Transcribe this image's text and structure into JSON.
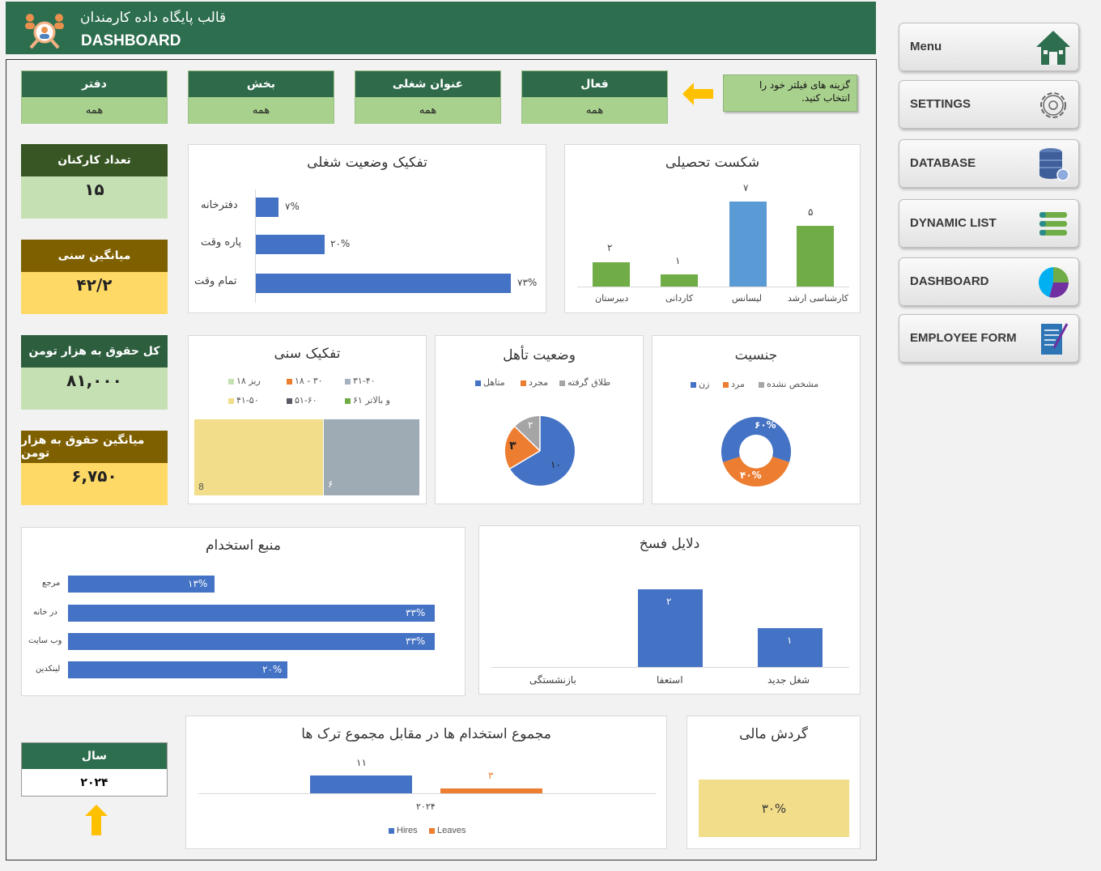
{
  "header": {
    "title_fa": "قالب پایگاه داده کارمندان",
    "title_en": "DASHBOARD",
    "logo_icon": "people-search-icon"
  },
  "filters": [
    {
      "label": "فعال",
      "value": "همه"
    },
    {
      "label": "عنوان شغلی",
      "value": "همه"
    },
    {
      "label": "بخش",
      "value": "همه"
    },
    {
      "label": "دفتر",
      "value": "همه"
    }
  ],
  "hint": {
    "text": "گزینه های فیلتر خود را انتخاب کنید.",
    "arrow_icon": "arrow-left-icon"
  },
  "kpis": {
    "employees": {
      "label": "تعداد کارکنان",
      "value": "۱۵"
    },
    "avg_age": {
      "label": "میانگین سنی",
      "value": "۴۲/۲"
    },
    "total_salary": {
      "label": "کل حقوق به هزار تومن",
      "value": "۸۱,۰۰۰"
    },
    "avg_salary": {
      "label": "میانگین حقوق به هزار تومن",
      "value": "۶,۷۵۰"
    }
  },
  "year": {
    "label": "سال",
    "value": "۲۰۲۴",
    "arrow_icon": "arrow-up-icon"
  },
  "sidebar": {
    "items": [
      {
        "label": "Menu",
        "icon": "home-icon"
      },
      {
        "label": "SETTINGS",
        "icon": "gear-icon"
      },
      {
        "label": "DATABASE",
        "icon": "database-icon"
      },
      {
        "label": "DYNAMIC LIST",
        "icon": "list-icon"
      },
      {
        "label": "DASHBOARD",
        "icon": "pie-chart-icon"
      },
      {
        "label": "EMPLOYEE FORM",
        "icon": "form-icon"
      }
    ]
  },
  "charts": {
    "education": {
      "title": "شکست تحصیلی",
      "categories": [
        "کارشناسی ارشد",
        "لیسانس",
        "کاردانی",
        "دبیرستان"
      ],
      "values": [
        "۵",
        "۷",
        "۱",
        "۲"
      ]
    },
    "job_status": {
      "title": "تفکیک وضعیت شغلی",
      "categories": [
        "دفترخانه",
        "پاره وقت",
        "تمام وقت"
      ],
      "values": [
        "۷%",
        "۲۰%",
        "۷۳%"
      ]
    },
    "gender": {
      "title": "جنسیت",
      "legend": [
        "مشخص نشده",
        "مرد",
        "زن"
      ],
      "labels": [
        "۶۰%",
        "۴۰%"
      ]
    },
    "marital": {
      "title": "وضعیت تأهل",
      "legend": [
        "طلاق گرفته",
        "مجرد",
        "متاهل"
      ],
      "labels": [
        "۱۰",
        "۳",
        "۲"
      ]
    },
    "age": {
      "title": "تفکیک سنی",
      "legend_row1": [
        "۳۱-۴۰",
        "۱۸ - ۳۰",
        "ریز ۱۸"
      ],
      "legend_row2": [
        "۶۱ و بالاتر",
        "۵۱-۶۰",
        "۴۱-۵۰"
      ],
      "labels": [
        "8",
        "۶"
      ]
    },
    "termination": {
      "title": "دلایل فسخ",
      "categories": [
        "شغل جدید",
        "استعفا",
        "بازنشستگی"
      ],
      "labels": [
        "۱",
        "۲"
      ]
    },
    "source": {
      "title": "منبع استخدام",
      "categories": [
        "مرجع",
        "در خانه",
        "وب سایت",
        "لینکدین"
      ],
      "labels": [
        "۱۳%",
        "۳۳%",
        "۳۳%",
        "۲۰%"
      ]
    },
    "hires_leaves": {
      "title": "مجموع استخدام ها در مقابل مجموع ترک ها",
      "category": "۲۰۲۴",
      "labels": [
        "۱۱",
        "۳"
      ],
      "legend": [
        "Hires",
        "Leaves"
      ]
    },
    "turnover": {
      "title": "گردش مالی",
      "value": "۳۰%"
    }
  },
  "chart_data": [
    {
      "type": "bar",
      "title": "شکست تحصیلی",
      "categories": [
        "کارشناسی ارشد",
        "لیسانس",
        "کاردانی",
        "دبیرستان"
      ],
      "values": [
        5,
        7,
        1,
        2
      ]
    },
    {
      "type": "bar",
      "title": "تفکیک وضعیت شغلی",
      "categories": [
        "دفترخانه",
        "پاره وقت",
        "تمام وقت"
      ],
      "values": [
        7,
        20,
        73
      ]
    },
    {
      "type": "pie",
      "title": "جنسیت",
      "categories": [
        "زن",
        "مرد"
      ],
      "values": [
        60,
        40
      ]
    },
    {
      "type": "pie",
      "title": "وضعیت تأهل",
      "categories": [
        "متاهل",
        "مجرد",
        "طلاق گرفته"
      ],
      "values": [
        10,
        3,
        2
      ]
    },
    {
      "type": "heatmap",
      "title": "تفکیک سنی",
      "categories": [
        "۴۱-۵۰",
        "۳۱-۴۰"
      ],
      "values": [
        8,
        6
      ]
    },
    {
      "type": "bar",
      "title": "دلایل فسخ",
      "categories": [
        "شغل جدید",
        "استعفا",
        "بازنشستگی"
      ],
      "values": [
        1,
        2,
        0
      ]
    },
    {
      "type": "bar",
      "title": "منبع استخدام",
      "categories": [
        "مرجع",
        "در خانه",
        "وب سایت",
        "لینکدین"
      ],
      "values": [
        13,
        33,
        33,
        20
      ]
    },
    {
      "type": "bar",
      "title": "مجموع استخدام ها در مقابل مجموع ترک ها",
      "categories": [
        "۲۰۲۴"
      ],
      "series": [
        {
          "name": "Hires",
          "values": [
            11
          ]
        },
        {
          "name": "Leaves",
          "values": [
            3
          ]
        }
      ]
    },
    {
      "type": "table",
      "title": "گردش مالی",
      "values": [
        30
      ]
    }
  ],
  "colors": {
    "dark_green": "#2d6e4f",
    "light_green": "#a9d18e",
    "blue": "#4472c4",
    "orange": "#ed7d31",
    "gray": "#a5a5a5",
    "yellow": "#ffd966",
    "chart_green": "#70ad47",
    "light_blue": "#5b9bd5"
  }
}
